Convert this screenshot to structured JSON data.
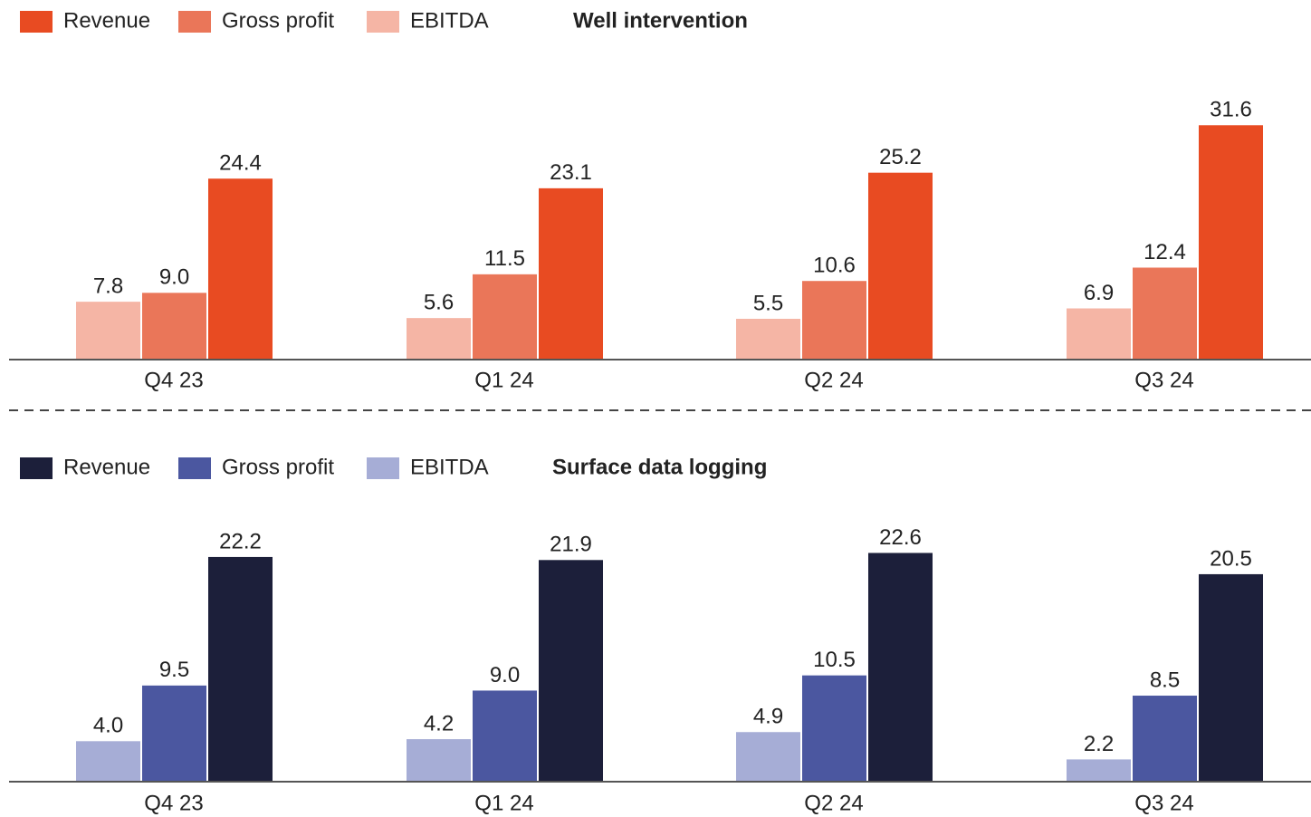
{
  "chart_data": [
    {
      "type": "bar",
      "title": "Well intervention",
      "categories": [
        "Q4 23",
        "Q1 24",
        "Q2 24",
        "Q3 24"
      ],
      "ylim": [
        0,
        32
      ],
      "series": [
        {
          "name": "EBITDA",
          "color": "#f5b5a5",
          "values": [
            7.8,
            5.6,
            5.5,
            6.9
          ],
          "value_labels": [
            "7.8",
            "5.6",
            "5.5",
            "6.9"
          ]
        },
        {
          "name": "Gross profit",
          "color": "#ea7659",
          "values": [
            9,
            11.5,
            10.6,
            12.4
          ],
          "value_labels": [
            "9.0",
            "11.5",
            "10.6",
            "12.4"
          ]
        },
        {
          "name": "Revenue",
          "color": "#e84b22",
          "values": [
            24.4,
            23.1,
            25.2,
            31.6
          ],
          "value_labels": [
            "24.4",
            "23.1",
            "25.2",
            "31.6"
          ]
        }
      ]
    },
    {
      "type": "bar",
      "title": "Surface data logging",
      "categories": [
        "Q4 23",
        "Q1 24",
        "Q2 24",
        "Q3 24"
      ],
      "ylim": [
        0,
        23
      ],
      "series": [
        {
          "name": "EBITDA",
          "color": "#a6add6",
          "values": [
            4,
            4.2,
            4.9,
            2.2
          ],
          "value_labels": [
            "4.0",
            "4.2",
            "4.9",
            "2.2"
          ]
        },
        {
          "name": "Gross profit",
          "color": "#4b57a0",
          "values": [
            9.5,
            9,
            10.5,
            8.5
          ],
          "value_labels": [
            "9.5",
            "9.0",
            "10.5",
            "8.5"
          ]
        },
        {
          "name": "Revenue",
          "color": "#1c1f3a",
          "values": [
            22.2,
            21.9,
            22.6,
            20.5
          ],
          "value_labels": [
            "22.2",
            "21.9",
            "22.6",
            "20.5"
          ]
        }
      ]
    }
  ]
}
